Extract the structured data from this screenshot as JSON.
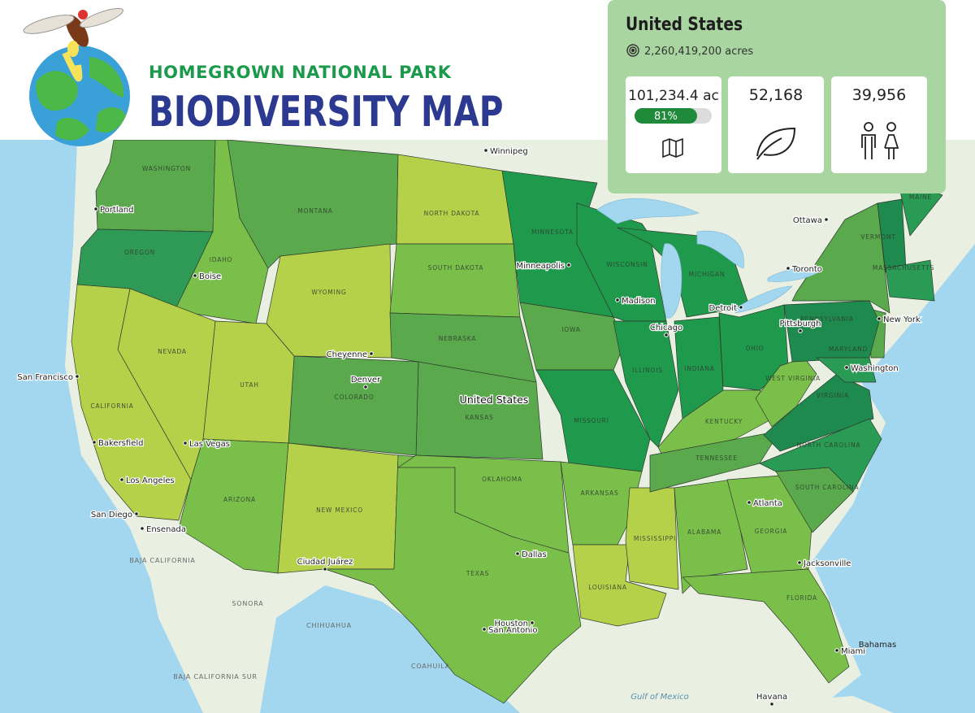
{
  "header": {
    "subtitle": "HOMEGROWN NATIONAL PARK",
    "title": "BIODIVERSITY MAP"
  },
  "panel": {
    "region": "United States",
    "area": "2,260,419,200 acres",
    "stats": {
      "planted_area": "101,234.4 ac",
      "progress": {
        "value": 81,
        "label": "81%"
      },
      "species": "52,168",
      "members": "39,956"
    }
  },
  "map": {
    "states": [
      {
        "name": "WASHINGTON",
        "color": "#5aa94c"
      },
      {
        "name": "OREGON",
        "color": "#2f9a55"
      },
      {
        "name": "IDAHO",
        "color": "#7bbf4b"
      },
      {
        "name": "MONTANA",
        "color": "#5aa94c"
      },
      {
        "name": "WYOMING",
        "color": "#b5d14a"
      },
      {
        "name": "NORTH DAKOTA",
        "color": "#b5d14a"
      },
      {
        "name": "SOUTH DAKOTA",
        "color": "#7bbf4b"
      },
      {
        "name": "NEBRASKA",
        "color": "#5aa94c"
      },
      {
        "name": "KANSAS",
        "color": "#5aa94c"
      },
      {
        "name": "COLORADO",
        "color": "#5aa94c"
      },
      {
        "name": "UTAH",
        "color": "#b5d14a"
      },
      {
        "name": "NEVADA",
        "color": "#b5d14a"
      },
      {
        "name": "CALIFORNIA",
        "color": "#b5d14a"
      },
      {
        "name": "ARIZONA",
        "color": "#7bbf4b"
      },
      {
        "name": "NEW MEXICO",
        "color": "#b5d14a"
      },
      {
        "name": "TEXAS",
        "color": "#7bbf4b"
      },
      {
        "name": "OKLAHOMA",
        "color": "#7bbf4b"
      },
      {
        "name": "MINNESOTA",
        "color": "#1f9a4d"
      },
      {
        "name": "IOWA",
        "color": "#5aa94c"
      },
      {
        "name": "MISSOURI",
        "color": "#1f9a4d"
      },
      {
        "name": "ARKANSAS",
        "color": "#7bbf4b"
      },
      {
        "name": "LOUISIANA",
        "color": "#b5d14a"
      },
      {
        "name": "MISSISSIPPI",
        "color": "#b5d14a"
      },
      {
        "name": "WISCONSIN",
        "color": "#1f9a4d"
      },
      {
        "name": "ILLINOIS",
        "color": "#1f9a4d"
      },
      {
        "name": "MICHIGAN",
        "color": "#1f9a4d"
      },
      {
        "name": "INDIANA",
        "color": "#1f9a4d"
      },
      {
        "name": "OHIO",
        "color": "#1f9a4d"
      },
      {
        "name": "KENTUCKY",
        "color": "#7bbf4b"
      },
      {
        "name": "TENNESSEE",
        "color": "#5aa94c"
      },
      {
        "name": "ALABAMA",
        "color": "#7bbf4b"
      },
      {
        "name": "GEORGIA",
        "color": "#7bbf4b"
      },
      {
        "name": "FLORIDA",
        "color": "#7bbf4b"
      },
      {
        "name": "SOUTH CAROLINA",
        "color": "#5aa94c"
      },
      {
        "name": "VIRGINIA",
        "color": "#1e8a4e"
      },
      {
        "name": "NORTH CAROLINA",
        "color": "#2a9b55"
      },
      {
        "name": "WEST VIRGINIA",
        "color": "#7bbf4b"
      },
      {
        "name": "PENNSYLVANIA",
        "color": "#1e8a4e"
      },
      {
        "name": "MARYLAND",
        "color": "#2a9b55"
      },
      {
        "name": "VERMONT",
        "color": "#1e8a4e"
      },
      {
        "name": "MAINE",
        "color": "#2a9b55"
      },
      {
        "name": "MASSACHUSETTS",
        "color": "#2a9b55"
      }
    ],
    "places": [
      "Winnipeg",
      "Portland",
      "Boise",
      "Cheyenne",
      "Denver",
      "San Francisco",
      "Bakersfield",
      "Las Vegas",
      "Los Angeles",
      "San Diego",
      "Ensenada",
      "Ciudad Juárez",
      "Dallas",
      "Houston",
      "San Antonio",
      "Minneapolis",
      "Madison",
      "Chicago",
      "Detroit",
      "Pittsburgh",
      "Washington",
      "New York",
      "Toronto",
      "Ottawa",
      "Atlanta",
      "Jacksonville",
      "Miami",
      "Havana"
    ],
    "country": "United States",
    "regions": [
      "SONORA",
      "CHIHUAHUA",
      "COAHUILA",
      "BAJA CALIFORNIA",
      "BAJA CALIFORNIA SUR",
      "Bahamas"
    ],
    "water": "Gulf of Mexico"
  }
}
